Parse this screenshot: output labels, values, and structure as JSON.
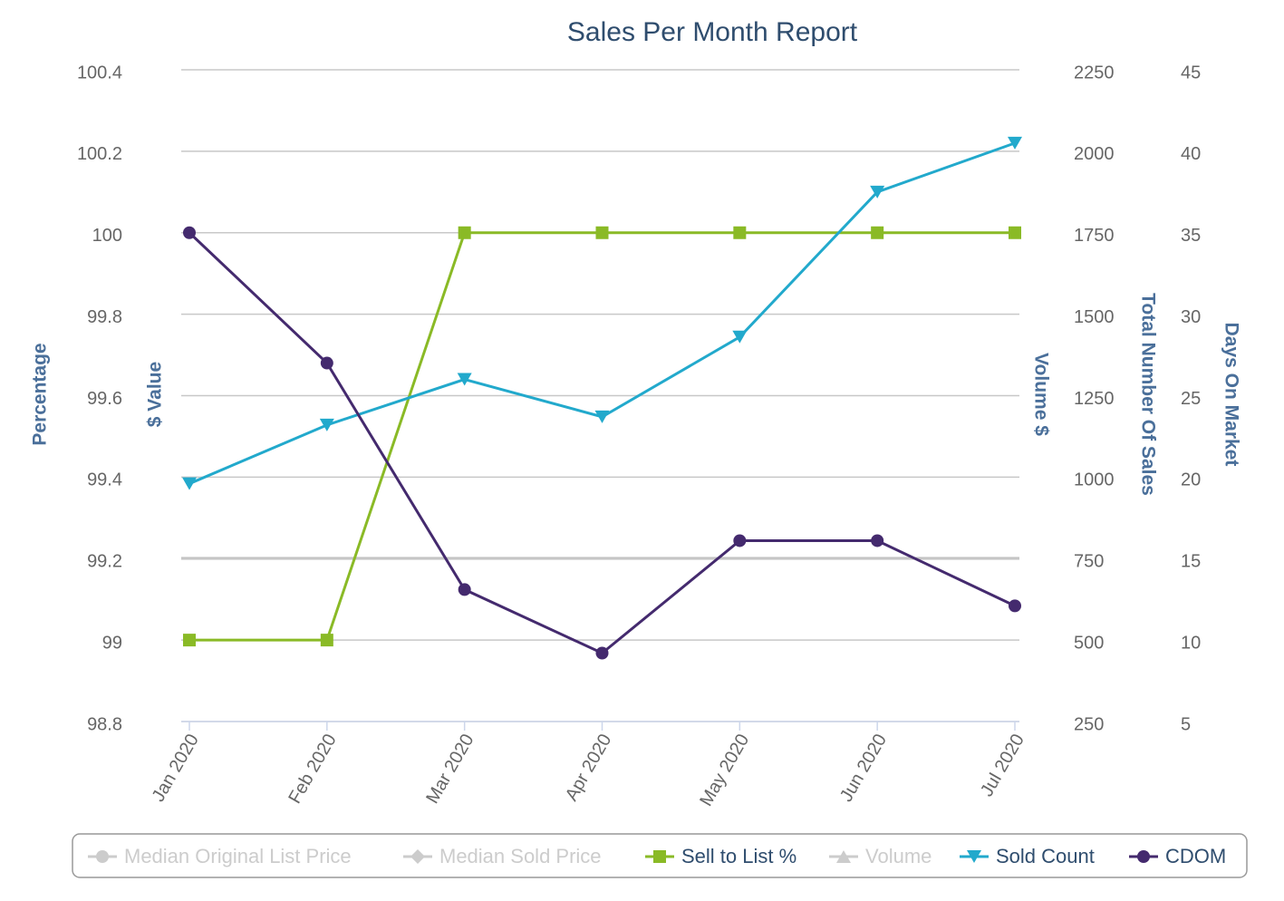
{
  "chart_data": {
    "type": "line",
    "title": "Sales Per Month Report",
    "categories": [
      "Jan 2020",
      "Feb 2020",
      "Mar 2020",
      "Apr 2020",
      "May 2020",
      "Jun 2020",
      "Jul 2020"
    ],
    "axes": [
      {
        "title": "Percentage",
        "side": "left",
        "lim": [
          98.8,
          100.4
        ],
        "ticks": [
          98.8,
          99,
          99.2,
          99.4,
          99.6,
          99.8,
          100,
          100.2,
          100.4
        ]
      },
      {
        "title": "$ Value",
        "side": "left"
      },
      {
        "title": "Volume $",
        "side": "right"
      },
      {
        "title": "Total Number Of Sales",
        "side": "right",
        "lim": [
          250,
          2250
        ],
        "ticks": [
          250,
          500,
          750,
          1000,
          1250,
          1500,
          1750,
          2000,
          2250
        ]
      },
      {
        "title": "Days On Market",
        "side": "right",
        "lim": [
          5,
          45
        ],
        "ticks": [
          5,
          10,
          15,
          20,
          25,
          30,
          35,
          40,
          45
        ]
      }
    ],
    "grid": true,
    "series": [
      {
        "name": "Median Original List Price",
        "color": "#cccccc",
        "marker": "circle",
        "visible": false
      },
      {
        "name": "Median Sold Price",
        "color": "#cccccc",
        "marker": "diamond",
        "visible": false
      },
      {
        "name": "Sell to List %",
        "color": "#8aba26",
        "marker": "square",
        "axis": 0,
        "values": [
          99,
          99,
          100,
          100,
          100,
          100,
          100
        ]
      },
      {
        "name": "Volume",
        "color": "#cccccc",
        "marker": "triangle",
        "visible": false
      },
      {
        "name": "Sold Count",
        "color": "#22a9cc",
        "marker": "triangle-down",
        "axis": 3,
        "values": [
          980,
          1160,
          1300,
          1185,
          1430,
          1875,
          2025
        ]
      },
      {
        "name": "CDOM",
        "color": "#442a6e",
        "marker": "circle",
        "axis": 4,
        "values": [
          35,
          27,
          13.1,
          9.2,
          16.1,
          16.1,
          12.1
        ]
      }
    ]
  }
}
